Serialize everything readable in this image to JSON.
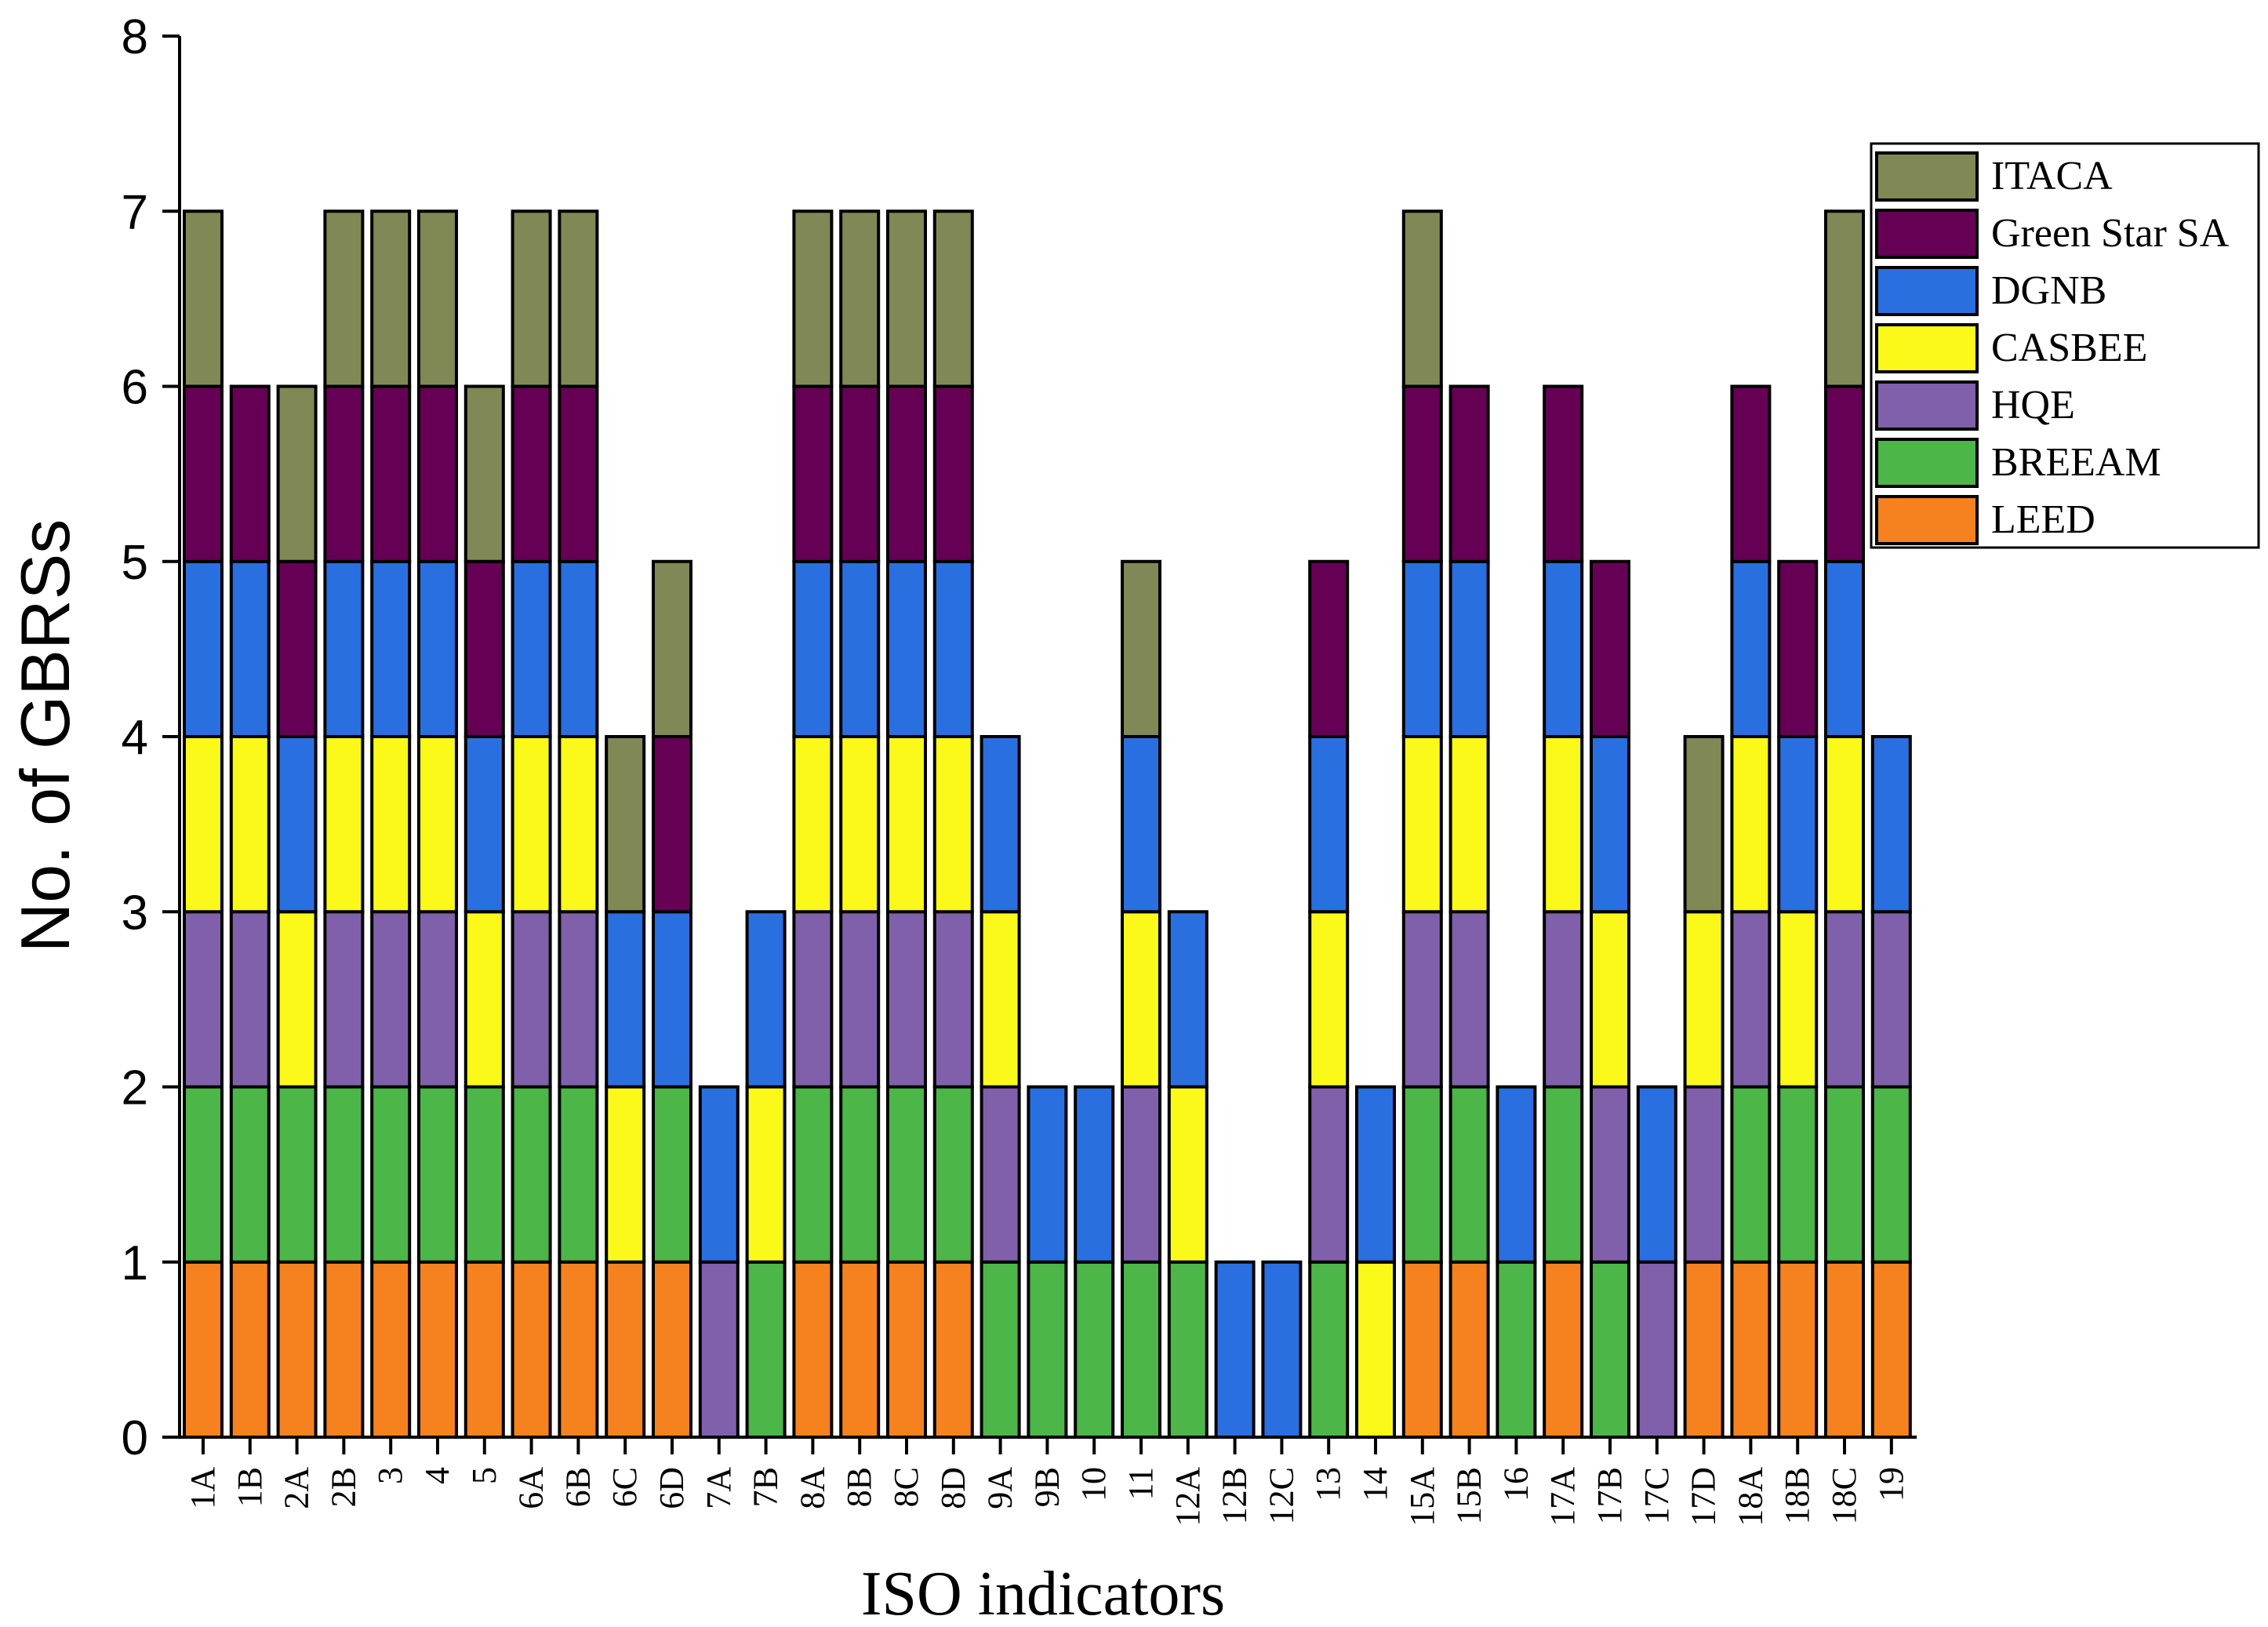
{
  "chart_data": {
    "type": "bar",
    "stacked": true,
    "xlabel": "ISO indicators",
    "ylabel": "No. of GBRSs",
    "ylim": [
      0,
      8
    ],
    "yticks": [
      0,
      1,
      2,
      3,
      4,
      5,
      6,
      7,
      8
    ],
    "legend_position": "top-right",
    "categories": [
      "1A",
      "1B",
      "2A",
      "2B",
      "3",
      "4",
      "5",
      "6A",
      "6B",
      "6C",
      "6D",
      "7A",
      "7B",
      "8A",
      "8B",
      "8C",
      "8D",
      "9A",
      "9B",
      "10",
      "11",
      "12A",
      "12B",
      "12C",
      "13",
      "14",
      "15A",
      "15B",
      "16",
      "17A",
      "17B",
      "17C",
      "17D",
      "18A",
      "18B",
      "18C",
      "19"
    ],
    "series": [
      {
        "name": "LEED",
        "color": "#f5821f",
        "values": [
          1,
          1,
          1,
          1,
          1,
          1,
          1,
          1,
          1,
          1,
          1,
          0,
          0,
          1,
          1,
          1,
          1,
          0,
          0,
          0,
          0,
          0,
          0,
          0,
          0,
          0,
          1,
          1,
          0,
          1,
          0,
          0,
          1,
          1,
          1,
          1,
          1
        ]
      },
      {
        "name": "BREEAM",
        "color": "#4cb648",
        "values": [
          1,
          1,
          1,
          1,
          1,
          1,
          1,
          1,
          1,
          0,
          1,
          0,
          1,
          1,
          1,
          1,
          1,
          1,
          1,
          1,
          1,
          1,
          0,
          0,
          1,
          0,
          1,
          1,
          1,
          1,
          1,
          0,
          0,
          1,
          1,
          1,
          1
        ]
      },
      {
        "name": "HQE",
        "color": "#8060ab",
        "values": [
          1,
          1,
          0,
          1,
          1,
          1,
          0,
          1,
          1,
          0,
          0,
          1,
          0,
          1,
          1,
          1,
          1,
          1,
          0,
          0,
          1,
          0,
          0,
          0,
          1,
          0,
          1,
          1,
          0,
          1,
          1,
          1,
          1,
          1,
          0,
          1,
          1
        ]
      },
      {
        "name": "CASBEE",
        "color": "#fbf91a",
        "values": [
          1,
          1,
          1,
          1,
          1,
          1,
          1,
          1,
          1,
          1,
          0,
          0,
          1,
          1,
          1,
          1,
          1,
          1,
          0,
          0,
          1,
          1,
          0,
          0,
          1,
          1,
          1,
          1,
          0,
          1,
          1,
          0,
          1,
          1,
          1,
          1,
          0
        ]
      },
      {
        "name": "DGNB",
        "color": "#2a6fe0",
        "values": [
          1,
          1,
          1,
          1,
          1,
          1,
          1,
          1,
          1,
          1,
          1,
          1,
          1,
          1,
          1,
          1,
          1,
          1,
          1,
          1,
          1,
          1,
          1,
          1,
          1,
          1,
          1,
          1,
          1,
          1,
          1,
          1,
          0,
          1,
          1,
          1,
          1
        ]
      },
      {
        "name": "Green Star SA",
        "color": "#660055",
        "values": [
          1,
          1,
          1,
          1,
          1,
          1,
          1,
          1,
          1,
          0,
          1,
          0,
          0,
          1,
          1,
          1,
          1,
          0,
          0,
          0,
          0,
          0,
          0,
          0,
          1,
          0,
          1,
          1,
          0,
          1,
          1,
          0,
          0,
          1,
          1,
          1,
          0
        ]
      },
      {
        "name": "ITACA",
        "color": "#808855",
        "values": [
          1,
          0,
          1,
          1,
          1,
          1,
          1,
          1,
          1,
          1,
          1,
          0,
          0,
          1,
          1,
          1,
          1,
          0,
          0,
          0,
          1,
          0,
          0,
          0,
          0,
          0,
          1,
          0,
          0,
          0,
          0,
          0,
          1,
          0,
          0,
          1,
          0
        ]
      }
    ],
    "legend_order": [
      "ITACA",
      "Green Star SA",
      "DGNB",
      "CASBEE",
      "HQE",
      "BREEAM",
      "LEED"
    ]
  }
}
